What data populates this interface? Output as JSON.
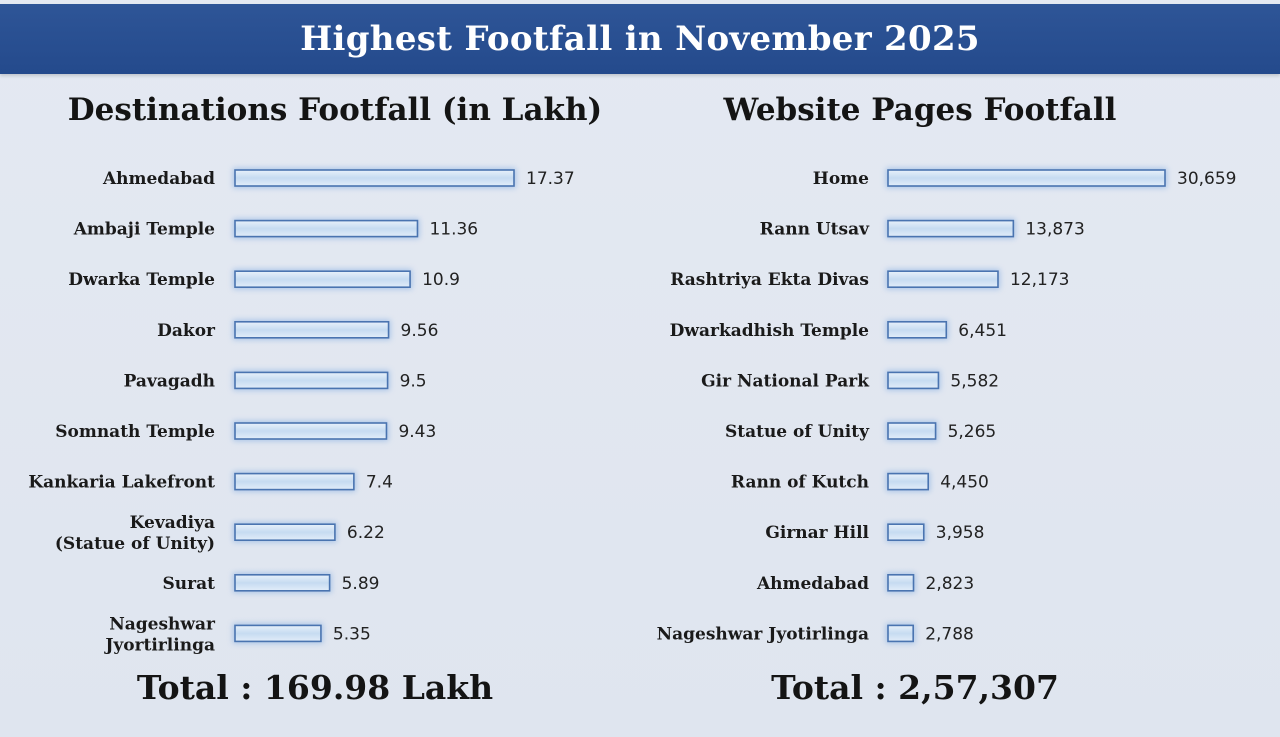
{
  "header": {
    "title": "Highest Footfall in November 2025"
  },
  "chart_data": [
    {
      "type": "bar",
      "title": "Destinations Footfall (in Lakh)",
      "orientation": "horizontal",
      "categories": [
        "Ahmedabad",
        "Ambaji Temple",
        "Dwarka Temple",
        "Dakor",
        "Pavagadh",
        "Somnath Temple",
        "Kankaria Lakefront",
        "Kevadiya\n(Statue of Unity)",
        "Surat",
        "Nageshwar\nJyortirlinga"
      ],
      "values": [
        17.37,
        11.36,
        10.9,
        9.56,
        9.5,
        9.43,
        7.4,
        6.22,
        5.89,
        5.35
      ],
      "value_labels": [
        "17.37",
        "11.36",
        "10.9",
        "9.56",
        "9.5",
        "9.43",
        "7.4",
        "6.22",
        "5.89",
        "5.35"
      ],
      "total_label": "Total : 169.98 Lakh",
      "bar_color": "#c9ddf2",
      "bar_border": "#4a74b0"
    },
    {
      "type": "bar",
      "title": "Website Pages Footfall",
      "orientation": "horizontal",
      "categories": [
        "Home",
        "Rann Utsav",
        "Rashtriya Ekta Divas",
        "Dwarkadhish Temple",
        "Gir National Park",
        "Statue of Unity",
        "Rann of Kutch",
        "Girnar Hill",
        "Ahmedabad",
        "Nageshwar Jyotirlinga"
      ],
      "values": [
        30659,
        13873,
        12173,
        6451,
        5582,
        5265,
        4450,
        3958,
        2823,
        2788
      ],
      "value_labels": [
        "30,659",
        "13,873",
        "12,173",
        "6,451",
        "5,582",
        "5,265",
        "4,450",
        "3,958",
        "2,823",
        "2,788"
      ],
      "total_label": "Total : 2,57,307",
      "bar_color": "#c9ddf2",
      "bar_border": "#4a74b0"
    }
  ]
}
